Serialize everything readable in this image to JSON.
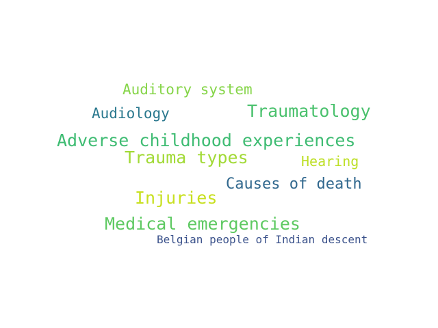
{
  "words": [
    {
      "text": "Auditory system",
      "color": "#86d549"
    },
    {
      "text": "Audiology",
      "color": "#2a788e"
    },
    {
      "text": "Traumatology",
      "color": "#4ac16d"
    },
    {
      "text": "Adverse childhood experiences",
      "color": "#3fbc73"
    },
    {
      "text": "Trauma types",
      "color": "#a2da37"
    },
    {
      "text": "Hearing",
      "color": "#bddf26"
    },
    {
      "text": "Causes of death",
      "color": "#31688e"
    },
    {
      "text": "Injuries",
      "color": "#c8e020"
    },
    {
      "text": "Medical emergencies",
      "color": "#5ec962"
    },
    {
      "text": "Belgian people of Indian descent",
      "color": "#3b528b"
    }
  ]
}
